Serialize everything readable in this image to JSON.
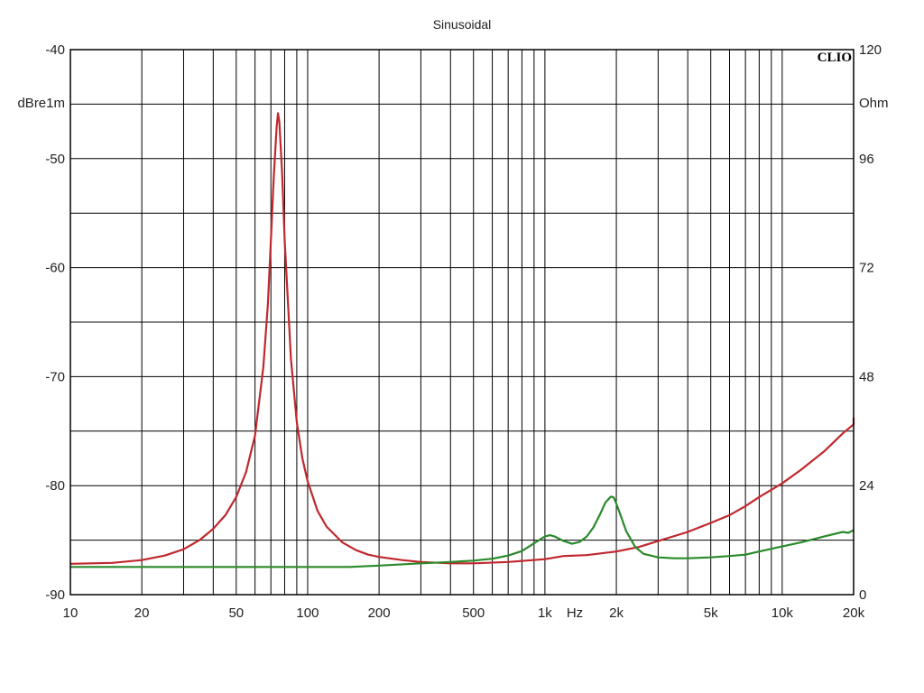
{
  "chart_data": {
    "type": "line",
    "title": "Sinusoidal",
    "brand": "CLIO",
    "x_axis": {
      "scale": "log",
      "range": [
        10,
        20000
      ],
      "unit_label": "Hz",
      "tick_labels": [
        {
          "value": 10,
          "label": "10"
        },
        {
          "value": 20,
          "label": "20"
        },
        {
          "value": 50,
          "label": "50"
        },
        {
          "value": 100,
          "label": "100"
        },
        {
          "value": 200,
          "label": "200"
        },
        {
          "value": 500,
          "label": "500"
        },
        {
          "value": 1000,
          "label": "1k"
        },
        {
          "value": 2000,
          "label": "2k"
        },
        {
          "value": 5000,
          "label": "5k"
        },
        {
          "value": 10000,
          "label": "10k"
        },
        {
          "value": 20000,
          "label": "20k"
        }
      ],
      "gridlines": [
        10,
        20,
        30,
        40,
        50,
        60,
        70,
        80,
        90,
        100,
        200,
        300,
        400,
        500,
        600,
        700,
        800,
        900,
        1000,
        2000,
        3000,
        4000,
        5000,
        6000,
        7000,
        8000,
        9000,
        10000,
        20000
      ]
    },
    "y_axis_left": {
      "label": "dBre1m",
      "range": [
        -90,
        -40
      ],
      "ticks": [
        -90,
        -80,
        -70,
        -60,
        -50,
        -40
      ],
      "minor_gridlines": [
        -85,
        -75,
        -65,
        -55,
        -45
      ]
    },
    "y_axis_right": {
      "label": "Ohm",
      "range": [
        0,
        120
      ],
      "ticks": [
        0,
        24,
        48,
        72,
        96,
        120
      ]
    },
    "grid": true,
    "series": [
      {
        "axis": "right",
        "color": "#c0282d",
        "points": [
          [
            10,
            6.8
          ],
          [
            15,
            7.0
          ],
          [
            20,
            7.6
          ],
          [
            25,
            8.6
          ],
          [
            30,
            10.0
          ],
          [
            35,
            12.0
          ],
          [
            40,
            14.5
          ],
          [
            45,
            17.5
          ],
          [
            50,
            21.5
          ],
          [
            55,
            27.0
          ],
          [
            60,
            35.0
          ],
          [
            65,
            50.0
          ],
          [
            68,
            64.0
          ],
          [
            70,
            78.0
          ],
          [
            72,
            92.0
          ],
          [
            74,
            103.0
          ],
          [
            75,
            106.0
          ],
          [
            76,
            104.0
          ],
          [
            78,
            93.0
          ],
          [
            80,
            78.0
          ],
          [
            85,
            52.0
          ],
          [
            90,
            38.0
          ],
          [
            95,
            30.0
          ],
          [
            100,
            25.0
          ],
          [
            110,
            18.5
          ],
          [
            120,
            15.0
          ],
          [
            140,
            11.5
          ],
          [
            160,
            9.8
          ],
          [
            180,
            8.8
          ],
          [
            200,
            8.3
          ],
          [
            250,
            7.6
          ],
          [
            300,
            7.2
          ],
          [
            400,
            6.9
          ],
          [
            500,
            6.9
          ],
          [
            700,
            7.2
          ],
          [
            1000,
            7.8
          ],
          [
            1200,
            8.5
          ],
          [
            1500,
            8.7
          ],
          [
            2000,
            9.5
          ],
          [
            2500,
            10.5
          ],
          [
            3000,
            11.8
          ],
          [
            4000,
            13.8
          ],
          [
            5000,
            15.8
          ],
          [
            6000,
            17.5
          ],
          [
            7000,
            19.5
          ],
          [
            8000,
            21.5
          ],
          [
            10000,
            24.5
          ],
          [
            12000,
            27.5
          ],
          [
            15000,
            31.5
          ],
          [
            18000,
            35.5
          ],
          [
            20000,
            37.5
          ],
          [
            20000,
            39.0
          ]
        ]
      },
      {
        "axis": "right",
        "color": "#2a8a2a",
        "points": [
          [
            10,
            6.1
          ],
          [
            50,
            6.1
          ],
          [
            100,
            6.1
          ],
          [
            150,
            6.1
          ],
          [
            200,
            6.4
          ],
          [
            300,
            6.9
          ],
          [
            400,
            7.2
          ],
          [
            500,
            7.5
          ],
          [
            600,
            7.9
          ],
          [
            700,
            8.6
          ],
          [
            800,
            9.6
          ],
          [
            900,
            11.3
          ],
          [
            1000,
            12.8
          ],
          [
            1050,
            13.1
          ],
          [
            1100,
            12.8
          ],
          [
            1200,
            11.8
          ],
          [
            1300,
            11.2
          ],
          [
            1400,
            11.6
          ],
          [
            1500,
            12.8
          ],
          [
            1600,
            14.8
          ],
          [
            1700,
            17.5
          ],
          [
            1800,
            20.3
          ],
          [
            1900,
            21.6
          ],
          [
            1950,
            21.4
          ],
          [
            2000,
            20.0
          ],
          [
            2100,
            17.0
          ],
          [
            2200,
            14.0
          ],
          [
            2400,
            10.5
          ],
          [
            2600,
            9.0
          ],
          [
            3000,
            8.2
          ],
          [
            3500,
            8.0
          ],
          [
            4000,
            8.0
          ],
          [
            5000,
            8.2
          ],
          [
            6000,
            8.5
          ],
          [
            7000,
            8.8
          ],
          [
            8000,
            9.5
          ],
          [
            10000,
            10.6
          ],
          [
            12000,
            11.5
          ],
          [
            15000,
            12.8
          ],
          [
            18000,
            13.8
          ],
          [
            19000,
            13.6
          ],
          [
            20000,
            14.2
          ]
        ]
      }
    ]
  }
}
